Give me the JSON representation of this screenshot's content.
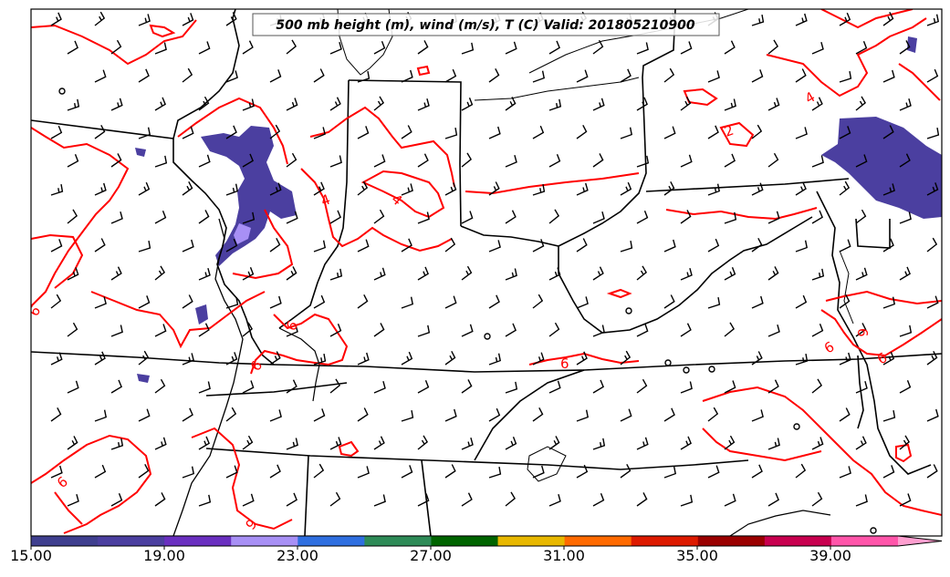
{
  "title": "500 mb height (m), wind (m/s), T (C) Valid: 201805210900",
  "contour_labels": [
    "4",
    "4",
    "4",
    "2",
    "6",
    "6",
    "6",
    "6",
    "6",
    "6",
    "6",
    "6"
  ],
  "colorbar": {
    "ticks": [
      "15.00",
      "19.00",
      "23.00",
      "27.00",
      "31.00",
      "35.00",
      "39.00"
    ],
    "colors": [
      "#3f3f8f",
      "#4b3fa0",
      "#6a2fc0",
      "#a890f5",
      "#2f6fe0",
      "#2e8b57",
      "#006400",
      "#e8b800",
      "#ff6a00",
      "#dd1a00",
      "#9a0000",
      "#c8004f",
      "#ff55aa",
      "#ff9fd0"
    ],
    "extend": "max"
  },
  "style": {
    "temperature_contour_color": "#ff0000",
    "border_color": "#000000"
  }
}
